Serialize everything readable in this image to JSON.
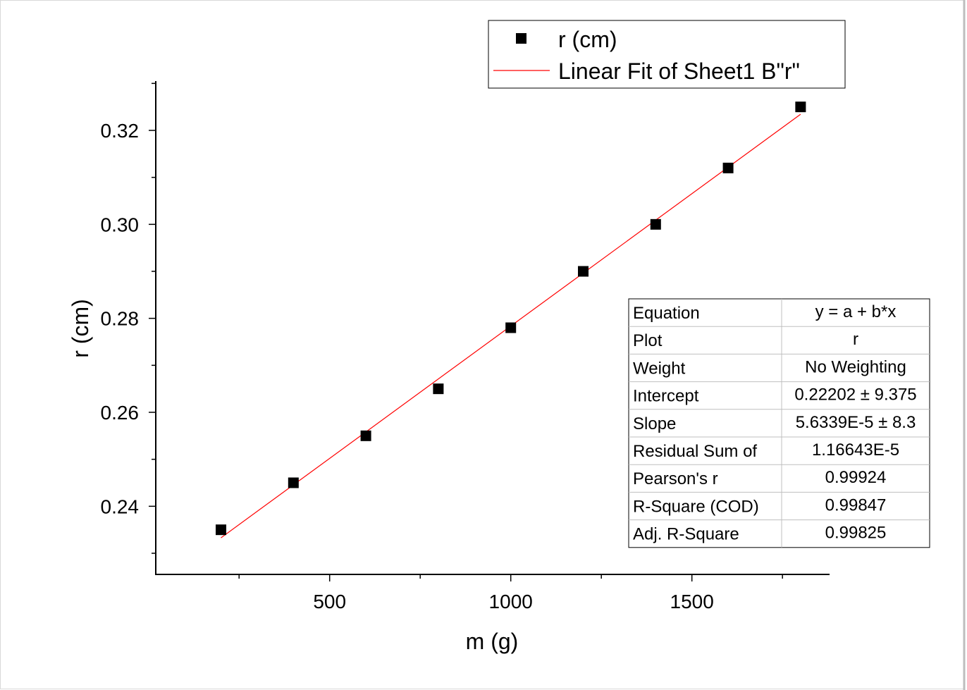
{
  "chart_data": {
    "type": "scatter",
    "xlabel": "m (g)",
    "ylabel": "r (cm)",
    "xlim": [
      20,
      1880
    ],
    "ylim": [
      0.2255,
      0.3305
    ],
    "x_ticks": [
      500,
      1000,
      1500
    ],
    "y_ticks": [
      0.24,
      0.26,
      0.28,
      0.3,
      0.32
    ],
    "y_tick_labels": [
      "0.24",
      "0.26",
      "0.28",
      "0.30",
      "0.32"
    ],
    "grid": false,
    "legend_position": "top-right",
    "series": [
      {
        "name": "r (cm)",
        "marker": "square",
        "color": "#000000",
        "x": [
          200,
          400,
          600,
          800,
          1000,
          1200,
          1400,
          1600,
          1800
        ],
        "y": [
          0.235,
          0.245,
          0.255,
          0.265,
          0.278,
          0.29,
          0.3,
          0.312,
          0.325
        ]
      }
    ],
    "fit": {
      "name": "Linear Fit of Sheet1 B\"r\"",
      "color": "#ff0000",
      "intercept": 0.22202,
      "slope": 5.6339e-05,
      "x_range": [
        200,
        1800
      ]
    },
    "stats_table": [
      {
        "label": "Equation",
        "value": "y = a + b*x"
      },
      {
        "label": "Plot",
        "value": "r"
      },
      {
        "label": "Weight",
        "value": "No Weighting"
      },
      {
        "label": "Intercept",
        "value": "0.22202 ± 9.375"
      },
      {
        "label": "Slope",
        "value": "5.6339E-5 ± 8.3"
      },
      {
        "label": "Residual Sum of",
        "value": "1.16643E-5"
      },
      {
        "label": "Pearson's r",
        "value": "0.99924"
      },
      {
        "label": "R-Square (COD)",
        "value": "0.99847"
      },
      {
        "label": "Adj. R-Square",
        "value": "0.99825"
      }
    ]
  }
}
